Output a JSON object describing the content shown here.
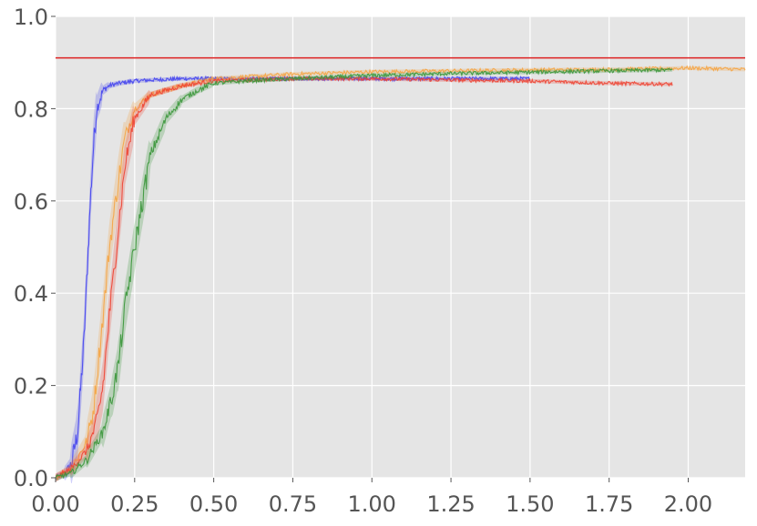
{
  "chart_data": {
    "type": "line",
    "title": "",
    "xlabel": "",
    "ylabel": "",
    "xlim": [
      0,
      2.18
    ],
    "ylim": [
      0,
      1.0
    ],
    "grid": true,
    "background": "#e5e5e5",
    "x_ticks": [
      {
        "value": 0.0,
        "label": "0.00"
      },
      {
        "value": 0.25,
        "label": "0.25"
      },
      {
        "value": 0.5,
        "label": "0.50"
      },
      {
        "value": 0.75,
        "label": "0.75"
      },
      {
        "value": 1.0,
        "label": "1.00"
      },
      {
        "value": 1.25,
        "label": "1.25"
      },
      {
        "value": 1.5,
        "label": "1.50"
      },
      {
        "value": 1.75,
        "label": "1.75"
      },
      {
        "value": 2.0,
        "label": "2.00"
      }
    ],
    "y_ticks": [
      {
        "value": 0.0,
        "label": "0.0"
      },
      {
        "value": 0.2,
        "label": "0.2"
      },
      {
        "value": 0.4,
        "label": "0.4"
      },
      {
        "value": 0.6,
        "label": "0.6"
      },
      {
        "value": 0.8,
        "label": "0.8"
      },
      {
        "value": 1.0,
        "label": "1.0"
      }
    ],
    "reference_line": {
      "y": 0.91,
      "color": "#dd2222"
    },
    "series": [
      {
        "color": "#4444ee",
        "x": [
          0.0,
          0.03,
          0.05,
          0.07,
          0.09,
          0.1,
          0.11,
          0.12,
          0.13,
          0.15,
          0.17,
          0.2,
          0.25,
          0.3,
          0.4,
          0.5,
          0.75,
          1.0,
          1.25,
          1.5
        ],
        "y": [
          0.0,
          0.01,
          0.03,
          0.1,
          0.3,
          0.45,
          0.6,
          0.72,
          0.8,
          0.84,
          0.85,
          0.855,
          0.86,
          0.862,
          0.865,
          0.865,
          0.865,
          0.865,
          0.865,
          0.865
        ]
      },
      {
        "color": "#f5a442",
        "x": [
          0.0,
          0.05,
          0.1,
          0.12,
          0.15,
          0.17,
          0.2,
          0.22,
          0.25,
          0.3,
          0.4,
          0.5,
          0.75,
          1.0,
          1.25,
          1.5,
          1.75,
          2.0,
          2.18
        ],
        "y": [
          0.0,
          0.02,
          0.08,
          0.15,
          0.35,
          0.5,
          0.65,
          0.74,
          0.8,
          0.83,
          0.85,
          0.865,
          0.875,
          0.88,
          0.882,
          0.884,
          0.885,
          0.888,
          0.885
        ]
      },
      {
        "color": "#ee4433",
        "x": [
          0.0,
          0.05,
          0.1,
          0.13,
          0.15,
          0.17,
          0.2,
          0.22,
          0.25,
          0.3,
          0.4,
          0.5,
          0.75,
          1.0,
          1.25,
          1.5,
          1.75,
          1.95
        ],
        "y": [
          0.0,
          0.02,
          0.06,
          0.12,
          0.2,
          0.35,
          0.55,
          0.68,
          0.78,
          0.83,
          0.85,
          0.86,
          0.865,
          0.865,
          0.862,
          0.86,
          0.855,
          0.853
        ]
      },
      {
        "color": "#3a963a",
        "x": [
          0.0,
          0.05,
          0.1,
          0.15,
          0.18,
          0.2,
          0.22,
          0.25,
          0.28,
          0.3,
          0.35,
          0.4,
          0.45,
          0.5,
          0.6,
          0.75,
          1.0,
          1.25,
          1.5,
          1.75,
          1.95
        ],
        "y": [
          0.0,
          0.01,
          0.04,
          0.1,
          0.18,
          0.25,
          0.37,
          0.5,
          0.62,
          0.7,
          0.78,
          0.82,
          0.84,
          0.855,
          0.86,
          0.865,
          0.872,
          0.876,
          0.879,
          0.882,
          0.884
        ]
      }
    ]
  }
}
